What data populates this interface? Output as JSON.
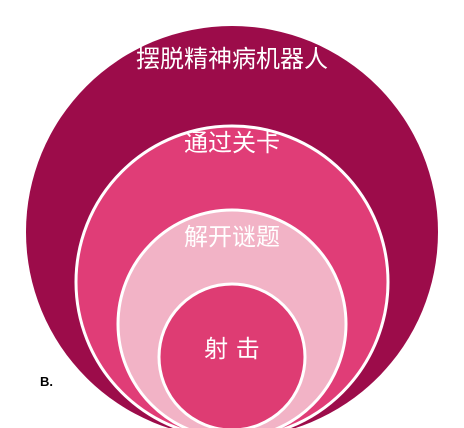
{
  "diagram": {
    "panel_label": "B.",
    "levels": [
      {
        "label": "摆脱精神病机器人",
        "color": "#9c0c4a"
      },
      {
        "label": "通过关卡",
        "color": "#e03d77"
      },
      {
        "label": "解开谜题",
        "color": "#f2b3c6"
      },
      {
        "label": "射 击",
        "color": "#de3c73"
      }
    ]
  }
}
